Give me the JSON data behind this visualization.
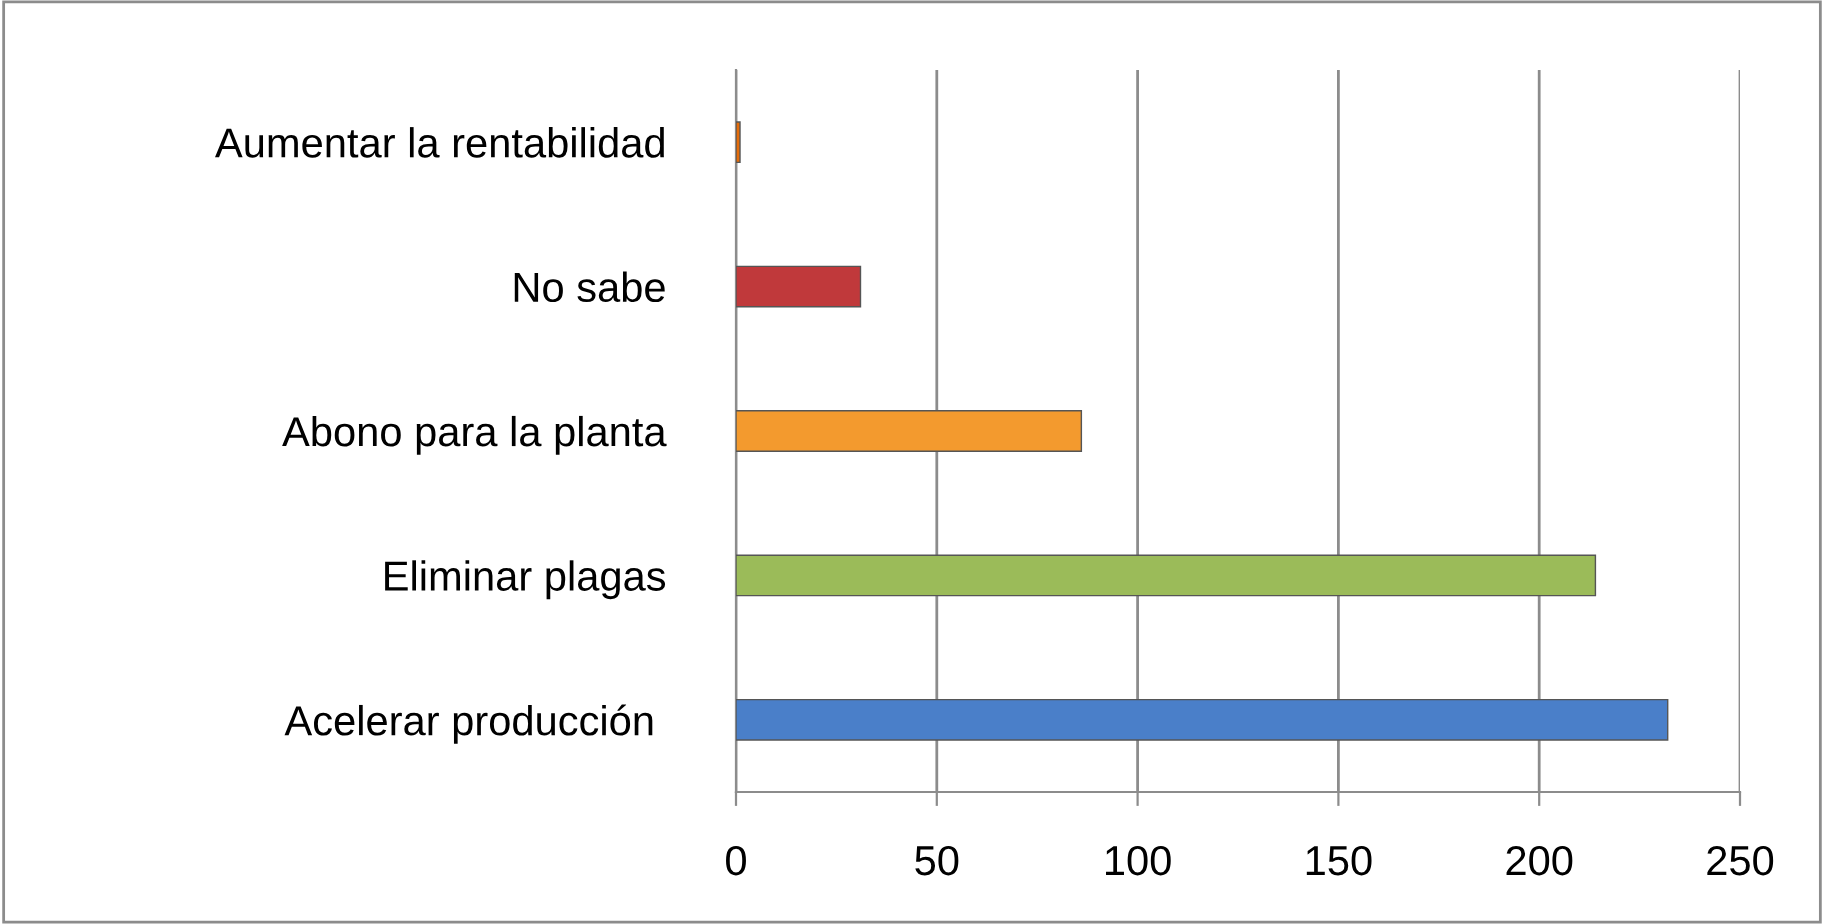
{
  "chart_data": {
    "type": "bar",
    "orientation": "horizontal",
    "categories": [
      "Aumentar la rentabilidad",
      "No sabe",
      "Abono para la planta",
      "Eliminar plagas",
      "Acelerar producción "
    ],
    "values": [
      1,
      31,
      86,
      214,
      232
    ],
    "colors": [
      "#e46c0a",
      "#c0393b",
      "#f39a2e",
      "#9bbb59",
      "#4a7fc9"
    ],
    "xlim": [
      0,
      250
    ],
    "xticks": [
      0,
      50,
      100,
      150,
      200,
      250
    ],
    "grid": "x",
    "legend": false
  }
}
